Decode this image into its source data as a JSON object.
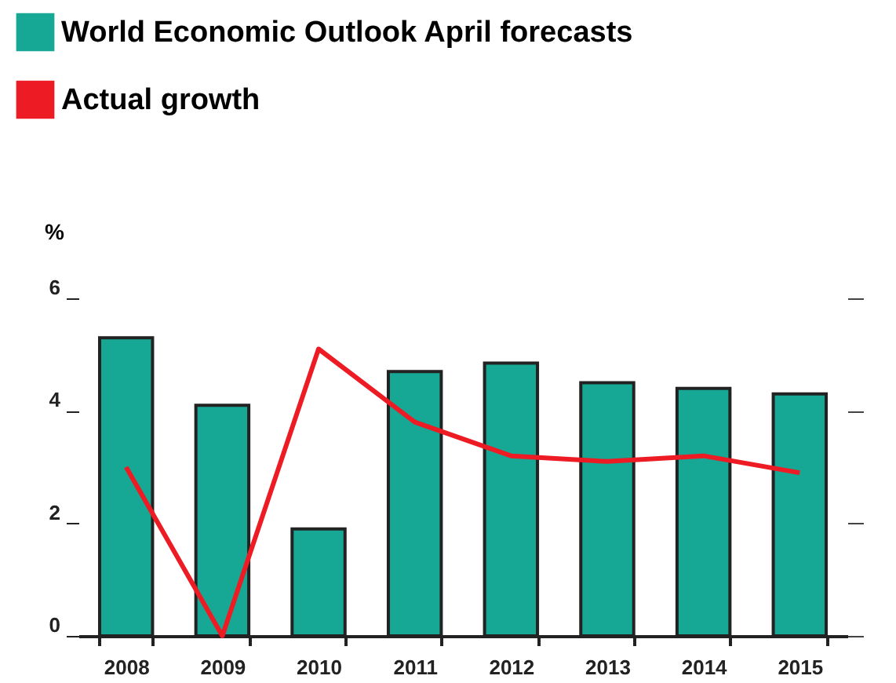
{
  "chart_data": {
    "type": "bar",
    "ylabel": "%",
    "categories": [
      "2008",
      "2009",
      "2010",
      "2011",
      "2012",
      "2013",
      "2014",
      "2015"
    ],
    "series": [
      {
        "name": "World Economic Outlook April forecasts",
        "color": "#17a895",
        "values": [
          5.3,
          4.1,
          1.9,
          4.7,
          4.85,
          4.5,
          4.4,
          4.3
        ]
      },
      {
        "name": "Actual growth",
        "type": "line",
        "color": "#ed1c24",
        "values": [
          3.0,
          0.0,
          5.1,
          3.8,
          3.2,
          3.1,
          3.2,
          2.9
        ]
      }
    ],
    "ylim": [
      0,
      6.0
    ],
    "yticks": [
      0,
      2,
      4,
      6
    ],
    "grid": false,
    "legend": "top left",
    "marker": "none",
    "line_style": "solid"
  }
}
